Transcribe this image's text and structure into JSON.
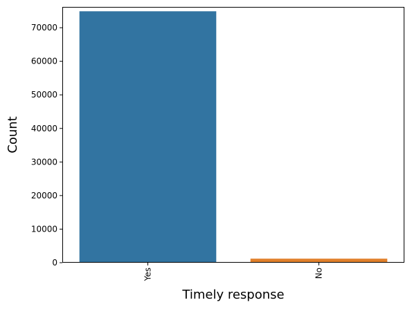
{
  "chart_data": {
    "type": "bar",
    "title": "",
    "xlabel": "Timely response",
    "ylabel": "Count",
    "categories": [
      "Yes",
      "No"
    ],
    "values": [
      74900,
      1200
    ],
    "colors": [
      "#3274a1",
      "#e1812c"
    ],
    "ylim": [
      0,
      76200
    ],
    "yticks": [
      0,
      10000,
      20000,
      30000,
      40000,
      50000,
      60000,
      70000
    ],
    "ytick_labels": [
      "0",
      "10000",
      "20000",
      "30000",
      "40000",
      "50000",
      "60000",
      "70000"
    ],
    "xtick_rotation": "vertical",
    "grid": false,
    "legend": "none"
  }
}
